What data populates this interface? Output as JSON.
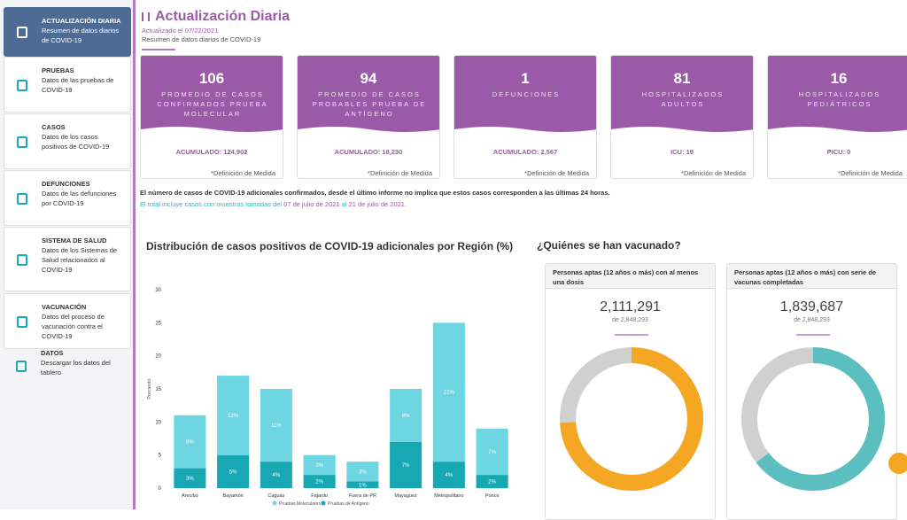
{
  "sidebar": [
    {
      "title": "ACTUALIZACIÓN DIARIA",
      "description": "Resumen de datos diarios de COVID-19"
    },
    {
      "title": "PRUEBAS",
      "description": "Datos de las pruebas de COVID-19"
    },
    {
      "title": "CASOS",
      "description": "Datos de los casos positivos de COVID-19"
    },
    {
      "title": "DEFUNCIONES",
      "description": "Datos de las defunciones por COVID-19"
    },
    {
      "title": "SISTEMA DE SALUD",
      "description": "Datos de los Sistemas de Salud relacionados al COVID-19"
    },
    {
      "title": "VACUNACIÓN",
      "description": "Datos del proceso de vacunación contra el COVID-19"
    },
    {
      "title": "DATOS",
      "description": "Descargar los datos del tablero"
    }
  ],
  "header": {
    "title": "Actualización Diaria",
    "updated": "Actualizado el 07/22/2021",
    "subtitle": "Resumen de datos diarios de COVID-19"
  },
  "cards": [
    {
      "value": 106,
      "label": "PROMEDIO DE CASOS CONFIRMADOS PRUEBA MOLECULAR",
      "cumulative": "ACUMULADO: 124,902",
      "link": "*Definición de Medida"
    },
    {
      "value": 94,
      "label": "PROMEDIO DE CASOS PROBABLES PRUEBA DE ANTÍGENO",
      "cumulative": "ACUMULADO: 18,230",
      "link": "*Definición de Medida"
    },
    {
      "value": 1,
      "label": "DEFUNCIONES",
      "cumulative": "ACUMULADO: 2,567",
      "link": "*Definición de Medida"
    },
    {
      "value": 81,
      "label": "HOSPITALIZADOS ADULTOS",
      "cumulative": "ICU: 19",
      "link": "*Definición de Medida"
    },
    {
      "value": 16,
      "label": "HOSPITALIZADOS PEDIÁTRICOS",
      "cumulative": "PICU: 0",
      "link": "*Definición de Medida"
    }
  ],
  "notes": {
    "warning": "El número de casos de COVID-19 adicionales confirmados, desde el último informe no implica que estos casos corresponden a las últimas 24 horas.",
    "range": [
      "El total incluye casos con muestras tomadas del ",
      "07 de julio de 2021",
      " al ",
      "21 de julio de 2021",
      "."
    ]
  },
  "chart_data": {
    "type": "bar",
    "stacked": true,
    "title": "Distribución de casos positivos de COVID-19 adicionales por Región (%)",
    "ylabel": "Porciento",
    "categories": [
      "Arecibo",
      "Bayamón",
      "Caguas",
      "Fajardo",
      "Fuera de PR",
      "Mayagüez",
      "Metropolitano",
      "Ponce"
    ],
    "series": [
      {
        "name": "Pruebas de Antígeno",
        "color": "#17a8b4",
        "values": [
          3,
          5,
          4,
          2,
          1,
          7,
          4,
          2
        ],
        "value_labels": [
          "3%",
          "5%",
          "4%",
          "2%",
          "1%",
          "7%",
          "4%",
          "2%"
        ]
      },
      {
        "name": "Pruebas Moleculares",
        "color": "#6dd6e2",
        "values": [
          8,
          12,
          11,
          3,
          3,
          8,
          21,
          7
        ],
        "value_labels": [
          "8%",
          "12%",
          "11%",
          "3%",
          "3%",
          "8%",
          "21%",
          "7%"
        ]
      }
    ],
    "legend_order": [
      1,
      0
    ],
    "ylim": [
      0,
      30
    ],
    "yticks": [
      0,
      5,
      10,
      15,
      20,
      25,
      30
    ]
  },
  "vaccination": {
    "title": "¿Quiénes se han vacunado?",
    "panels": [
      {
        "header": "Personas aptas (12 años o más) con al menos una dosis",
        "value": 2111291,
        "value_label": "2,111,291",
        "total": 2848293,
        "total_label": "de 2,848,293",
        "color": "#f5a623"
      },
      {
        "header": "Personas aptas (12 años o más) con serie de vacunas completadas",
        "value": 1839687,
        "value_label": "1,839,687",
        "total": 2848293,
        "total_label": "de 2,848,293",
        "color": "#5bbfbf"
      }
    ]
  }
}
